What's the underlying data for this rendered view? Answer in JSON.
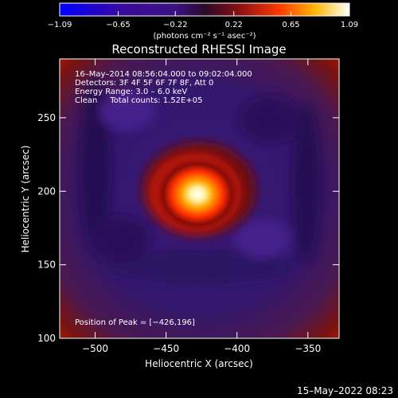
{
  "chart_data": {
    "type": "heatmap",
    "title": "Reconstructed RHESSI Image",
    "xlabel": "Heliocentric X (arcsec)",
    "ylabel": "Heliocentric Y (arcsec)",
    "xlim": [
      -525,
      -328
    ],
    "ylim": [
      100,
      290
    ],
    "x_ticks": [
      -500,
      -450,
      -400,
      -350
    ],
    "y_ticks": [
      100,
      150,
      200,
      250
    ],
    "x_tick_labels": [
      "−500",
      "−450",
      "−400",
      "−350"
    ],
    "y_tick_labels": [
      "100",
      "150",
      "200",
      "250"
    ],
    "colorbar": {
      "min": -1.09,
      "max": 1.09,
      "ticks": [
        -1.09,
        -0.65,
        -0.22,
        0.22,
        0.65,
        1.09
      ],
      "tick_labels": [
        "−1.09",
        "−0.65",
        "−0.22",
        "0.22",
        "0.65",
        "1.09"
      ],
      "unit_label": "(photons cm⁻² s⁻¹ asec⁻²)"
    },
    "annotations": [
      "16–May–2014 08:56:04.000 to 09:02:04.000",
      "Detectors: 3F 4F 5F 6F 7F 8F, Att 0",
      "Energy Range: 3.0 – 6.0 keV",
      "Clean     Total counts: 1.52E+05"
    ],
    "peak_label": "Position of Peak = [−426,196]",
    "peak": {
      "x": -426,
      "y": 196
    },
    "grid": false
  },
  "footer_timestamp": "15–May–2022 08:23"
}
